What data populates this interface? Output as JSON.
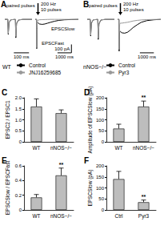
{
  "chart_data": [
    {
      "type": "line",
      "title": "A",
      "subtitle": "WT",
      "annotations": [
        "paired pulses"
      ],
      "x": [
        -20,
        0,
        3,
        8,
        20,
        50,
        53,
        58,
        70,
        100,
        160
      ],
      "series": [
        {
          "name": "Control",
          "color": "#000000",
          "values": [
            0,
            0,
            -180,
            -40,
            -5,
            0,
            -220,
            -50,
            -8,
            0,
            0
          ]
        },
        {
          "name": "JNJ16259685",
          "color": "#999999",
          "values": [
            0,
            0,
            -170,
            -35,
            -5,
            0,
            -205,
            -45,
            -5,
            0,
            0
          ]
        }
      ],
      "xlim": [
        -20,
        160
      ],
      "ylim": [
        -420,
        40
      ],
      "tick_labels": false,
      "scale_bars": [
        {
          "label": "100 ms",
          "x": [
            40,
            140
          ],
          "y": [
            -400,
            -400
          ]
        }
      ]
    },
    {
      "type": "line",
      "annotations": [
        "200 Hz\n10 pulses",
        "EPSCSlow",
        "EPSCFast"
      ],
      "x": [
        -100,
        0,
        10,
        30,
        50,
        100,
        200,
        400,
        600,
        800,
        1000,
        1300,
        1600,
        2000,
        2500,
        3000
      ],
      "series": [
        {
          "name": "Control",
          "color": "#000000",
          "values": [
            0,
            0,
            -350,
            -120,
            -50,
            -40,
            -55,
            -60,
            -55,
            -45,
            -35,
            -22,
            -12,
            -5,
            -2,
            0
          ]
        },
        {
          "name": "JNJ16259685",
          "color": "#999999",
          "values": [
            0,
            0,
            -340,
            -110,
            -30,
            -10,
            -5,
            -3,
            -2,
            -1,
            0,
            0,
            0,
            0,
            0,
            0
          ]
        }
      ],
      "xlim": [
        -100,
        3000
      ],
      "ylim": [
        -420,
        40
      ],
      "tick_labels": false,
      "legend": "bottom",
      "scale_bars": [
        {
          "label": "1000 ms",
          "x": [
            1500,
            2500
          ],
          "y": [
            -400,
            -400
          ]
        },
        {
          "label": "100 pA",
          "x": [
            2500,
            2500
          ],
          "y": [
            -400,
            -300
          ]
        }
      ]
    },
    {
      "type": "line",
      "title": "B",
      "subtitle": "nNOS−/−",
      "annotations": [
        "paired pulses"
      ],
      "x": [
        -20,
        0,
        3,
        8,
        20,
        50,
        53,
        58,
        70,
        100,
        160
      ],
      "series": [
        {
          "name": "Control",
          "color": "#000000",
          "values": [
            0,
            0,
            -200,
            -45,
            -6,
            0,
            -240,
            -55,
            -8,
            0,
            0
          ]
        },
        {
          "name": "Pyr3",
          "color": "#999999",
          "values": [
            0,
            0,
            -190,
            -40,
            -5,
            0,
            -225,
            -50,
            -6,
            0,
            0
          ]
        }
      ],
      "xlim": [
        -20,
        160
      ],
      "ylim": [
        -420,
        40
      ],
      "tick_labels": false
    },
    {
      "type": "line",
      "annotations": [
        "200 Hz\n10 pulses"
      ],
      "x": [
        -100,
        0,
        10,
        30,
        50,
        100,
        200,
        400,
        600,
        800,
        1000,
        1300,
        1600,
        2000,
        2500,
        3000
      ],
      "series": [
        {
          "name": "Control",
          "color": "#000000",
          "values": [
            0,
            0,
            -380,
            -200,
            -150,
            -145,
            -160,
            -165,
            -155,
            -130,
            -100,
            -65,
            -35,
            -15,
            -5,
            0
          ]
        },
        {
          "name": "Pyr3",
          "color": "#999999",
          "values": [
            0,
            0,
            -360,
            -150,
            -60,
            -45,
            -45,
            -40,
            -35,
            -28,
            -20,
            -12,
            -7,
            -3,
            -1,
            0
          ]
        }
      ],
      "xlim": [
        -100,
        3000
      ],
      "ylim": [
        -420,
        40
      ],
      "tick_labels": false,
      "legend": "bottom",
      "scale_bars": [
        {
          "label": "1000 ms",
          "x": [
            1500,
            2500
          ],
          "y": [
            -400,
            -400
          ]
        }
      ]
    },
    {
      "type": "bar",
      "title": "C",
      "categories": [
        "WT",
        "nNOS−/−"
      ],
      "values": [
        1.6,
        1.3
      ],
      "errors": [
        0.35,
        0.15
      ],
      "color": "#bdbdbd",
      "ylabel": "EPSC2 / EPSC1",
      "ylim": [
        0,
        2
      ],
      "yticks": [
        0,
        0.5,
        {
          "value": 1,
          "label": "1.0"
        },
        1.5,
        {
          "value": 2,
          "label": "2.0"
        }
      ]
    },
    {
      "type": "bar",
      "title": "D",
      "categories": [
        "WT",
        "nNOS−/−"
      ],
      "values": [
        60,
        160
      ],
      "errors": [
        20,
        25
      ],
      "color": "#bdbdbd",
      "ylabel": "Amplitude of EPSCSlow (pA)",
      "ylim": [
        0,
        200
      ],
      "yticks": [
        0,
        50,
        100,
        150,
        200
      ],
      "annotations": [
        {
          "category": "nNOS−/−",
          "text": "**"
        }
      ]
    },
    {
      "type": "bar",
      "title": "E",
      "categories": [
        "WT",
        "nNOS−/−"
      ],
      "values": [
        0.17,
        0.47
      ],
      "errors": [
        0.04,
        0.1
      ],
      "color": "#bdbdbd",
      "ylabel": "EPSCSlow / EPSCFast",
      "ylim": [
        0,
        0.6
      ],
      "yticks": [
        0,
        0.2,
        0.4,
        0.6
      ],
      "annotations": [
        {
          "category": "nNOS−/−",
          "text": "**"
        }
      ]
    },
    {
      "type": "bar",
      "title": "F",
      "categories": [
        "Ctrl",
        "Pyr3"
      ],
      "values": [
        140,
        35
      ],
      "errors": [
        35,
        10
      ],
      "color": "#bdbdbd",
      "ylabel": "EPSCSlow (pA)",
      "ylim": [
        0,
        200
      ],
      "yticks": [
        0,
        50,
        100,
        150,
        200
      ],
      "annotations": [
        {
          "category": "Pyr3",
          "text": "**"
        }
      ]
    }
  ]
}
